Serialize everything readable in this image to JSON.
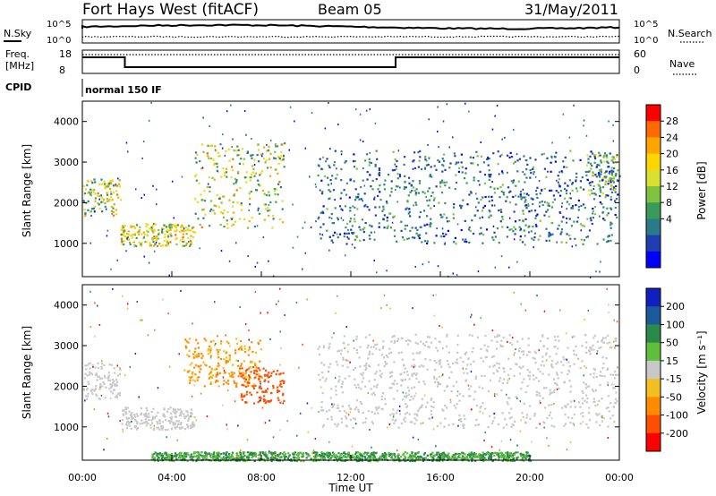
{
  "header": {
    "station": "Fort Hays West (fitACF)",
    "beam": "Beam 05",
    "date": "31/May/2011"
  },
  "noise_panel": {
    "left_label": "N.Sky",
    "right_label": "N.Search",
    "top_tick": "10^5",
    "bottom_tick": "10^0"
  },
  "freq_panel": {
    "left_label_line1": "Freq.",
    "left_label_line2": "[MHz]",
    "right_label": "Nave",
    "left_ticks": [
      "18",
      "8"
    ],
    "right_ticks": [
      "60",
      "0"
    ]
  },
  "cpid_panel": {
    "label": "CPID",
    "value": "normal 150 IF"
  },
  "power_colorbar": {
    "title": "Power [dB]",
    "levels": [
      "28",
      "24",
      "20",
      "16",
      "12",
      "8",
      "4"
    ],
    "colors": [
      "#ff0000",
      "#ff6a00",
      "#ffa500",
      "#ffd500",
      "#d8e030",
      "#7fc241",
      "#3a9a5a",
      "#2a7a8a",
      "#1f3fb0",
      "#0000ff"
    ]
  },
  "velocity_colorbar": {
    "title": "Velocity [m s⁻¹]",
    "levels": [
      "200",
      "100",
      "50",
      "15",
      "-15",
      "-50",
      "-100",
      "-200"
    ],
    "colors": [
      "#1020c0",
      "#1a5a9a",
      "#2a8a4a",
      "#5fbf3a",
      "#c8c8c8",
      "#f0c020",
      "#ff8c00",
      "#ff5000",
      "#ff0000"
    ]
  },
  "axes": {
    "ylabel": "Slant Range [km]",
    "xlabel": "Time UT",
    "y_ticks": [
      "4000",
      "3000",
      "2000",
      "1000"
    ],
    "x_ticks": [
      "00:00",
      "04:00",
      "08:00",
      "12:00",
      "16:00",
      "20:00",
      "00:00"
    ]
  },
  "chart_data": [
    {
      "type": "heatmap",
      "title": "Power [dB]",
      "xlabel": "",
      "ylabel": "Slant Range [km]",
      "x_unit": "hours UT",
      "xlim": [
        0,
        24
      ],
      "ylim": [
        180,
        4500
      ],
      "color_levels_db": [
        4,
        8,
        12,
        16,
        20,
        24,
        28
      ],
      "features": [
        {
          "time_range_h": [
            0,
            1.7
          ],
          "range_km": [
            1700,
            2600
          ],
          "power_db": [
            8,
            28
          ]
        },
        {
          "time_range_h": [
            1.7,
            5.0
          ],
          "range_km": [
            950,
            1500
          ],
          "power_db": [
            12,
            28
          ]
        },
        {
          "time_range_h": [
            5.0,
            9.0
          ],
          "range_km": [
            1400,
            3500
          ],
          "power_db": [
            8,
            28
          ]
        },
        {
          "time_range_h": [
            10.5,
            23.9
          ],
          "range_km": [
            1000,
            3300
          ],
          "power_db": [
            4,
            16
          ]
        },
        {
          "time_range_h": [
            22.5,
            24.0
          ],
          "range_km": [
            2200,
            3200
          ],
          "power_db": [
            4,
            24
          ]
        }
      ]
    },
    {
      "type": "heatmap",
      "title": "Velocity [m s⁻¹]",
      "xlabel": "Time UT",
      "ylabel": "Slant Range [km]",
      "x_unit": "hours UT",
      "xlim": [
        0,
        24
      ],
      "ylim": [
        180,
        4500
      ],
      "color_levels_ms": [
        -200,
        -100,
        -50,
        -15,
        15,
        50,
        100,
        200
      ],
      "features": [
        {
          "time_range_h": [
            0,
            1.7
          ],
          "range_km": [
            1700,
            2600
          ],
          "velocity_ms": [
            -15,
            15
          ]
        },
        {
          "time_range_h": [
            1.7,
            5.0
          ],
          "range_km": [
            950,
            1500
          ],
          "velocity_ms": [
            -15,
            15
          ]
        },
        {
          "time_range_h": [
            4.5,
            8.0
          ],
          "range_km": [
            2000,
            3200
          ],
          "velocity_ms": [
            -100,
            -15
          ]
        },
        {
          "time_range_h": [
            7.0,
            9.0
          ],
          "range_km": [
            1600,
            2500
          ],
          "velocity_ms": [
            -200,
            -100
          ]
        },
        {
          "time_range_h": [
            10.5,
            23.9
          ],
          "range_km": [
            1000,
            3300
          ],
          "velocity_ms": [
            -15,
            15
          ]
        },
        {
          "time_range_h": [
            3.0,
            20.0
          ],
          "range_km": [
            180,
            400
          ],
          "velocity_ms": [
            15,
            100
          ]
        }
      ]
    }
  ]
}
